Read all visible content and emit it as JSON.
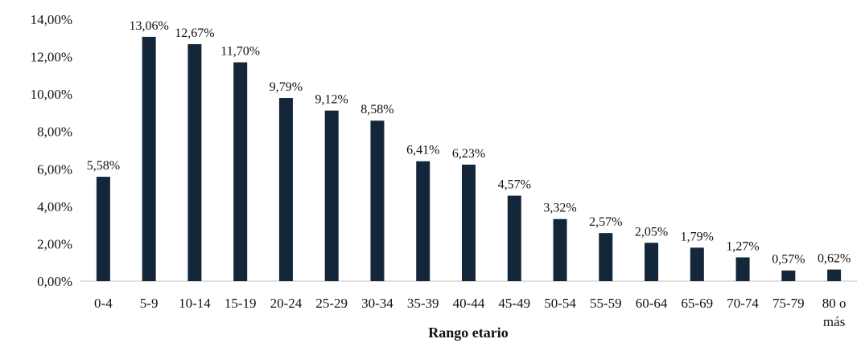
{
  "chart_data": {
    "type": "bar",
    "categories": [
      "0-4",
      "5-9",
      "10-14",
      "15-19",
      "20-24",
      "25-29",
      "30-34",
      "35-39",
      "40-44",
      "45-49",
      "50-54",
      "55-59",
      "60-64",
      "65-69",
      "70-74",
      "75-79",
      "80 o más"
    ],
    "values": [
      5.58,
      13.06,
      12.67,
      11.7,
      9.79,
      9.12,
      8.58,
      6.41,
      6.23,
      4.57,
      3.32,
      2.57,
      2.05,
      1.79,
      1.27,
      0.57,
      0.62
    ],
    "data_labels": [
      "5,58%",
      "13,06%",
      "12,67%",
      "11,70%",
      "9,79%",
      "9,12%",
      "8,58%",
      "6,41%",
      "6,23%",
      "4,57%",
      "3,32%",
      "2,57%",
      "2,05%",
      "1,79%",
      "1,27%",
      "0,57%",
      "0,62%"
    ],
    "y_ticks": [
      0,
      2,
      4,
      6,
      8,
      10,
      12,
      14
    ],
    "y_tick_labels": [
      "0,00%",
      "2,00%",
      "4,00%",
      "6,00%",
      "8,00%",
      "10,00%",
      "12,00%",
      "14,00%"
    ],
    "ylim": [
      0,
      14
    ],
    "title": "",
    "xlabel": "Rango etario",
    "ylabel": "",
    "grid": false,
    "legend": "none",
    "bar_color": "#14273a",
    "axis_color": "#bfbfbf"
  }
}
